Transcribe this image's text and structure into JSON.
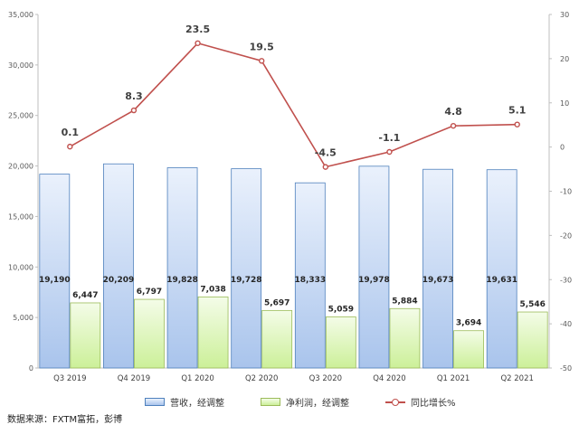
{
  "chart_data": {
    "type": "bar",
    "categories": [
      "Q3 2019",
      "Q4 2019",
      "Q1 2020",
      "Q2 2020",
      "Q3 2020",
      "Q4 2020",
      "Q1 2021",
      "Q2 2021"
    ],
    "series": [
      {
        "name": "营收，经调整",
        "type": "bar",
        "axis": "left",
        "color": "#a9c4ec",
        "values": [
          19190,
          20209,
          19828,
          19728,
          18333,
          19978,
          19673,
          19631
        ],
        "labels": [
          "19,190",
          "20,209",
          "19,828",
          "19,728",
          "18,333",
          "19,978",
          "19,673",
          "19,631"
        ]
      },
      {
        "name": "净利润，经调整",
        "type": "bar",
        "axis": "left",
        "color": "#ccf099",
        "values": [
          6447,
          6797,
          7038,
          5697,
          5059,
          5884,
          3694,
          5546
        ],
        "labels": [
          "6,447",
          "6,797",
          "7,038",
          "5,697",
          "5,059",
          "5,884",
          "3,694",
          "5,546"
        ]
      },
      {
        "name": "同比增长%",
        "type": "line",
        "axis": "right",
        "color": "#c0504d",
        "values": [
          0.1,
          8.3,
          23.5,
          19.5,
          -4.5,
          -1.1,
          4.8,
          5.1
        ],
        "labels": [
          "0.1",
          "8.3",
          "23.5",
          "19.5",
          "-4.5",
          "-1.1",
          "4.8",
          "5.1"
        ]
      }
    ],
    "y_left": {
      "min": 0,
      "max": 35000,
      "ticks": [
        0,
        5000,
        10000,
        15000,
        20000,
        25000,
        30000,
        35000
      ],
      "tick_labels": [
        "0",
        "5,000",
        "10,000",
        "15,000",
        "20,000",
        "25,000",
        "30,000",
        "35,000"
      ]
    },
    "y_right": {
      "min": -50,
      "max": 30,
      "ticks": [
        -50,
        -40,
        -30,
        -20,
        -10,
        0,
        10,
        20,
        30
      ],
      "tick_labels": [
        "-50",
        "-40",
        "-30",
        "-20",
        "-10",
        "0",
        "10",
        "20",
        "30"
      ]
    },
    "grid": false,
    "legend_position": "bottom"
  },
  "footer": {
    "source": "数据来源：FXTM富拓，彭博"
  }
}
